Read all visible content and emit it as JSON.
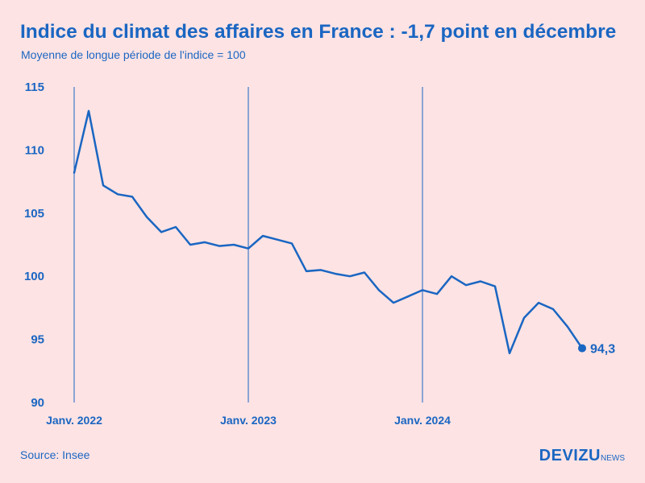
{
  "header": {
    "title": "Indice du climat des affaires en France : -1,7 point en décembre",
    "subtitle": "Moyenne de longue période de l'indice = 100"
  },
  "footer": {
    "source": "Source: Insee",
    "brand_main": "DEVIZU",
    "brand_sub": "NEWS"
  },
  "colors": {
    "background": "#fde3e4",
    "accent": "#1a66c2"
  },
  "chart_data": {
    "type": "line",
    "title": "Indice du climat des affaires en France : -1,7 point en décembre",
    "subtitle": "Moyenne de longue période de l'indice = 100",
    "xlabel": "",
    "ylabel": "",
    "ylim": [
      90,
      115
    ],
    "yticks": [
      115,
      110,
      105,
      100,
      95,
      90
    ],
    "xticks": [
      "Janv. 2022",
      "Janv. 2023",
      "Janv. 2024"
    ],
    "grid": "vertical lines at each January",
    "legend": "none",
    "end_label": "94,3",
    "series": [
      {
        "x": [
          "2022-01",
          "2022-02",
          "2022-03",
          "2022-04",
          "2022-05",
          "2022-06",
          "2022-07",
          "2022-08",
          "2022-09",
          "2022-10",
          "2022-11",
          "2022-12",
          "2023-01",
          "2023-02",
          "2023-03",
          "2023-04",
          "2023-05",
          "2023-06",
          "2023-07",
          "2023-08",
          "2023-09",
          "2023-10",
          "2023-11",
          "2023-12",
          "2024-01",
          "2024-02",
          "2024-03",
          "2024-04",
          "2024-05",
          "2024-06",
          "2024-07",
          "2024-08",
          "2024-09",
          "2024-10",
          "2024-11",
          "2024-12"
        ],
        "values": [
          108.2,
          113.1,
          107.2,
          106.5,
          106.3,
          104.7,
          103.5,
          103.9,
          102.5,
          102.7,
          102.4,
          102.5,
          102.2,
          103.2,
          102.9,
          102.6,
          100.4,
          100.5,
          100.2,
          100.0,
          100.3,
          98.9,
          97.9,
          98.4,
          98.9,
          98.6,
          100.0,
          99.3,
          99.6,
          99.2,
          93.9,
          96.7,
          97.9,
          97.4,
          96.0,
          94.3
        ]
      }
    ]
  }
}
